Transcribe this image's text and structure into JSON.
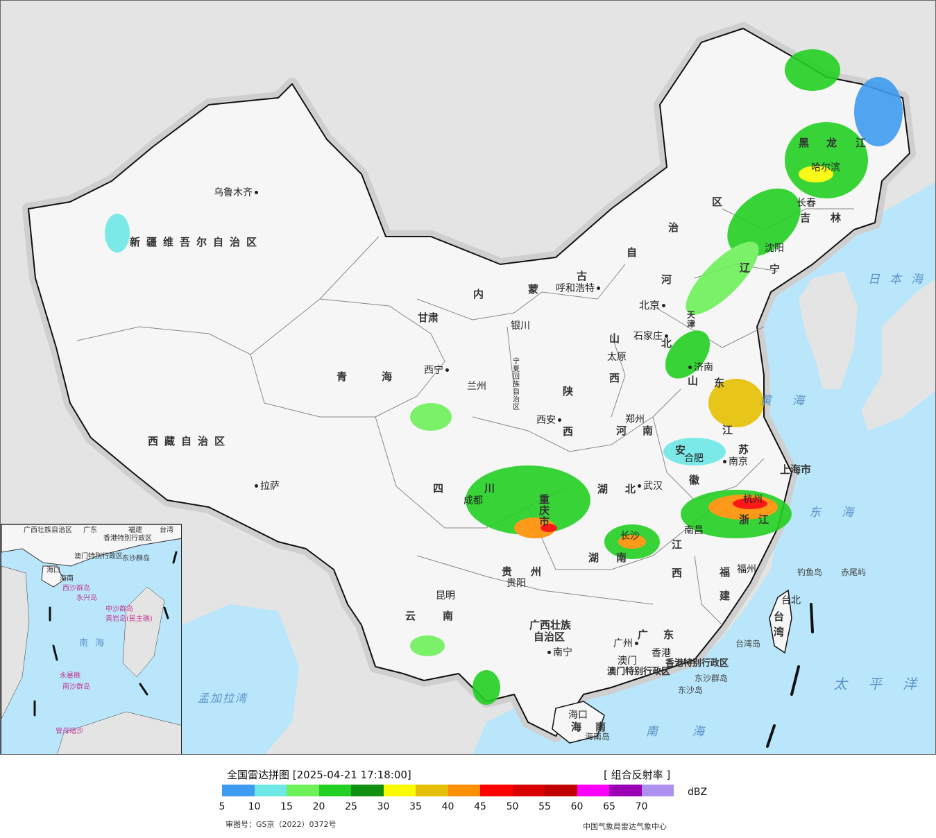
{
  "map": {
    "background_color": "#e4e4e4",
    "sea_color": "#b9e6fb",
    "land_color": "#f7f7f7",
    "provinces": {
      "xinjiang": "新疆维吾尔自治区",
      "xizang": "西藏自治区",
      "qinghai": "青海",
      "gansu": "甘肃",
      "neimenggu_1": "内",
      "neimenggu_2": "蒙",
      "neimenggu_3": "古",
      "neimenggu_4": "自",
      "neimenggu_5": "治",
      "neimenggu_6": "区",
      "heilongjiang_1": "黑",
      "heilongjiang_2": "龙",
      "heilongjiang_3": "江",
      "jilin_1": "吉",
      "jilin_2": "林",
      "liaoning_1": "辽",
      "liaoning_2": "宁",
      "hebei_1": "河",
      "hebei_2": "北",
      "shanxi_1": "山",
      "shanxi_2": "西",
      "shandong_1": "山",
      "shandong_2": "东",
      "henan_1": "河",
      "henan_2": "南",
      "shaanxi_1": "陕",
      "shaanxi_2": "西",
      "ningxia": "宁夏回族自治区",
      "sichuan_1": "四",
      "sichuan_2": "川",
      "chongqing": "重庆市",
      "hubei_1": "湖",
      "hubei_2": "北",
      "hunan_1": "湖",
      "hunan_2": "南",
      "jiangxi_1": "江",
      "jiangxi_2": "西",
      "anhui_1": "安",
      "anhui_2": "徽",
      "jiangsu_1": "江",
      "jiangsu_2": "苏",
      "zhejiang_1": "浙",
      "zhejiang_2": "江",
      "fujian_1": "福",
      "fujian_2": "建",
      "guizhou_1": "贵",
      "guizhou_2": "州",
      "yunnan_1": "云",
      "yunnan_2": "南",
      "guangxi_1": "广西壮族",
      "guangxi_2": "自治区",
      "guangdong_1": "广",
      "guangdong_2": "东",
      "hainan_1": "海",
      "hainan_2": "南",
      "taiwan_1": "台",
      "taiwan_2": "湾",
      "shanghai": "上海市",
      "tianjin": "天津",
      "hk": "香港特别行政区",
      "macau": "澳门特别行政区"
    },
    "cities": {
      "urumqi": "乌鲁木齐",
      "lhasa": "拉萨",
      "xining": "西宁",
      "lanzhou": "兰州",
      "yinchuan": "银川",
      "hohhot": "呼和浩特",
      "beijing": "北京",
      "shijiazhuang": "石家庄",
      "taiyuan": "太原",
      "jinan": "济南",
      "xian": "西安",
      "zhengzhou": "郑州",
      "chengdu": "成都",
      "wuhan": "武汉",
      "hefei": "合肥",
      "nanjing": "南京",
      "hangzhou": "杭州",
      "nanchang": "南昌",
      "changsha": "长沙",
      "guiyang": "贵阳",
      "kunming": "昆明",
      "nanning": "南宁",
      "guangzhou": "广州",
      "hongkong": "香港",
      "macao": "澳门",
      "haikou": "海口",
      "fuzhou": "福州",
      "taipei": "台北",
      "shenyang": "沈阳",
      "changchun": "长春",
      "harbin": "哈尔滨"
    },
    "seas": {
      "japan": "日本海",
      "yellow": "黄海",
      "east": "东海",
      "pacific": "太平洋",
      "south": "南海",
      "bengal": "孟加拉湾"
    },
    "islands": {
      "diaoyu": "钓鱼岛",
      "chiwei": "赤尾屿",
      "dongsha_islands": "东沙群岛",
      "dongsha": "东沙岛",
      "taiwan_island": "台湾岛",
      "hainan_island": "海南岛"
    }
  },
  "inset": {
    "guangxi": "广西壮族自治区",
    "guangdong": "广东",
    "fujian": "福建",
    "taiwan": "台湾",
    "hk": "香港特别行政区",
    "macau": "澳门特别行政区",
    "haikou": "海口",
    "hainan": "海南",
    "xisha": "西沙群岛",
    "yongxing": "永兴岛",
    "zhongsha": "中沙群岛",
    "huangyan": "黄岩岛(民主礁)",
    "nansha": "南沙群岛",
    "yongshu": "永暑礁",
    "zengmu": "曾母暗沙",
    "dongsha": "东沙群岛",
    "south_sea": "南海"
  },
  "legend": {
    "title": "全国雷达拼图 [2025-04-21 17:18:00]",
    "product": "[ 组合反射率 ]",
    "unit": "dBZ",
    "approval": "审图号：GS京（2022）0372号",
    "source": "中国气象局雷达气象中心",
    "colors": [
      "#3f9bf0",
      "#6ee8e6",
      "#6ef05a",
      "#22d022",
      "#119011",
      "#fbfb00",
      "#e6c000",
      "#ff9000",
      "#ff0000",
      "#d80000",
      "#c00000",
      "#ff00ff",
      "#9a00b4",
      "#ad90f0"
    ],
    "ticks": [
      "5",
      "10",
      "15",
      "20",
      "25",
      "30",
      "35",
      "40",
      "45",
      "50",
      "55",
      "60",
      "65",
      "70"
    ]
  }
}
